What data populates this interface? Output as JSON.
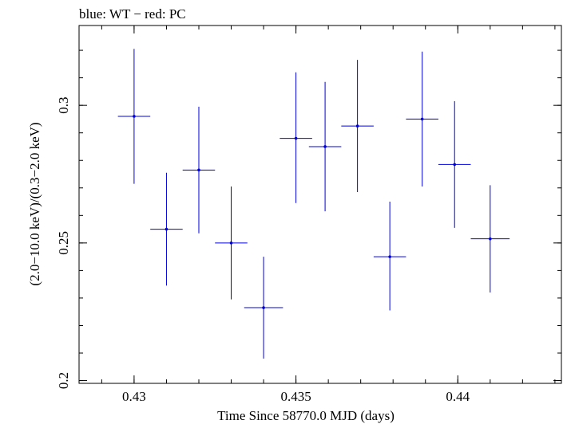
{
  "chart_data": {
    "type": "scatter",
    "title": "blue: WT − red: PC",
    "xlabel": "Time Since 58770.0 MJD (days)",
    "ylabel": "(2.0−10.0 keV)/(0.3−2.0 keV)",
    "xlim": [
      0.4283,
      0.4432
    ],
    "ylim": [
      0.199,
      0.329
    ],
    "x_ticks": [
      {
        "value": 0.43,
        "label": "0.43"
      },
      {
        "value": 0.435,
        "label": "0.435"
      },
      {
        "value": 0.44,
        "label": "0.44"
      }
    ],
    "y_ticks": [
      {
        "value": 0.2,
        "label": "0.2"
      },
      {
        "value": 0.25,
        "label": "0.25"
      },
      {
        "value": 0.3,
        "label": "0.3"
      }
    ],
    "x_minor_step": 0.001,
    "y_minor_step": 0.01,
    "series": [
      {
        "color": "#0000dd",
        "points": [
          {
            "x": 0.43,
            "xerr": 0.0005,
            "y": 0.296,
            "yerr_low": 0.0245,
            "yerr_high": 0.0245
          },
          {
            "x": 0.431,
            "xerr": 0.0005,
            "y": 0.255,
            "yerr_low": 0.0205,
            "yerr_high": 0.0205
          },
          {
            "x": 0.432,
            "xerr": 0.0005,
            "y": 0.2765,
            "yerr_low": 0.023,
            "yerr_high": 0.023
          },
          {
            "x": 0.433,
            "xerr": 0.0005,
            "y": 0.25,
            "yerr_low": 0.0205,
            "yerr_high": 0.0205
          },
          {
            "x": 0.434,
            "xerr": 0.0006,
            "y": 0.2265,
            "yerr_low": 0.0185,
            "yerr_high": 0.0185
          },
          {
            "x": 0.435,
            "xerr": 0.0005,
            "y": 0.288,
            "yerr_low": 0.0235,
            "yerr_high": 0.024
          },
          {
            "x": 0.4359,
            "xerr": 0.0005,
            "y": 0.285,
            "yerr_low": 0.0235,
            "yerr_high": 0.0235
          },
          {
            "x": 0.4369,
            "xerr": 0.0005,
            "y": 0.2925,
            "yerr_low": 0.024,
            "yerr_high": 0.024
          },
          {
            "x": 0.4379,
            "xerr": 0.0005,
            "y": 0.245,
            "yerr_low": 0.0195,
            "yerr_high": 0.02
          },
          {
            "x": 0.4389,
            "xerr": 0.0005,
            "y": 0.295,
            "yerr_low": 0.0245,
            "yerr_high": 0.0245
          },
          {
            "x": 0.4399,
            "xerr": 0.0005,
            "y": 0.2785,
            "yerr_low": 0.023,
            "yerr_high": 0.023
          },
          {
            "x": 0.441,
            "xerr": 0.0006,
            "y": 0.2515,
            "yerr_low": 0.0195,
            "yerr_high": 0.0195
          }
        ]
      }
    ]
  }
}
